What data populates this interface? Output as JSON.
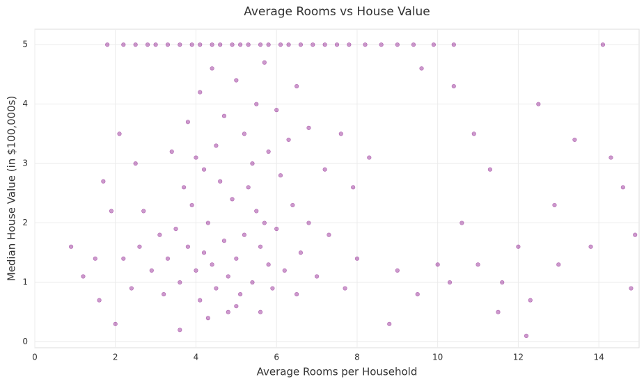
{
  "chart_data": {
    "type": "scatter",
    "title": "Average Rooms vs House Value",
    "xlabel": "Average Rooms per Household",
    "ylabel": "Median House Value (in $100,000s)",
    "color": "#800080",
    "xlim": [
      0,
      15
    ],
    "ylim": [
      -0.1,
      5.26
    ],
    "xticks": [
      0,
      2,
      4,
      6,
      8,
      10,
      12,
      14
    ],
    "yticks": [
      0,
      1,
      2,
      3,
      4,
      5
    ],
    "grid": true,
    "x": [
      1.8,
      2.2,
      2.5,
      2.8,
      3.0,
      3.3,
      3.6,
      3.9,
      4.1,
      4.4,
      4.6,
      4.9,
      5.1,
      5.3,
      5.6,
      5.8,
      6.1,
      6.3,
      6.6,
      6.9,
      7.2,
      7.5,
      7.8,
      8.2,
      8.6,
      9.0,
      9.4,
      9.9,
      10.4,
      14.1,
      4.0,
      4.2,
      4.5,
      4.8,
      5.0,
      5.2,
      5.4,
      5.6,
      4.3,
      4.7,
      5.1,
      5.5,
      5.8,
      6.0,
      3.8,
      3.6,
      4.1,
      4.9,
      5.3,
      5.7,
      6.2,
      6.4,
      3.5,
      3.9,
      4.4,
      4.6,
      5.0,
      5.9,
      6.1,
      4.2,
      3.3,
      3.1,
      2.9,
      2.7,
      6.6,
      6.8,
      7.0,
      4.8,
      5.4,
      4.0,
      3.7,
      4.5,
      5.2,
      5.8,
      6.3,
      3.4,
      2.6,
      2.4,
      2.2,
      7.3,
      4.3,
      5.6,
      6.5,
      3.2,
      4.7,
      5.5,
      6.0,
      4.1,
      3.8,
      5.0,
      6.5,
      4.4,
      5.7,
      6.8,
      7.2,
      7.6,
      7.9,
      8.3,
      8.0,
      7.7,
      2.1,
      2.5,
      1.7,
      1.9,
      1.5,
      1.2,
      0.9,
      1.6,
      2.0,
      3.6,
      9.0,
      9.5,
      10.0,
      10.3,
      10.6,
      11.0,
      11.3,
      11.6,
      12.0,
      12.3,
      12.5,
      12.9,
      13.4,
      13.8,
      14.3,
      14.6,
      14.8,
      14.9,
      11.5,
      9.6,
      10.4,
      10.9,
      8.8,
      12.2,
      13.0
    ],
    "y": [
      5,
      5,
      5,
      5,
      5,
      5,
      5,
      5,
      5,
      5,
      5,
      5,
      5,
      5,
      5,
      5,
      5,
      5,
      5,
      5,
      5,
      5,
      5,
      5,
      5,
      5,
      5,
      5,
      5,
      5,
      1.2,
      1.5,
      0.9,
      1.1,
      1.4,
      1.8,
      1.0,
      1.6,
      2.0,
      1.7,
      0.8,
      2.2,
      1.3,
      1.9,
      1.6,
      1.0,
      0.7,
      2.4,
      2.6,
      2.0,
      1.2,
      2.3,
      1.9,
      2.3,
      1.3,
      2.7,
      0.6,
      0.9,
      2.8,
      2.9,
      1.4,
      1.8,
      1.2,
      2.2,
      1.5,
      2.0,
      1.1,
      0.5,
      3.0,
      3.1,
      2.6,
      3.3,
      3.5,
      3.2,
      3.4,
      3.2,
      1.6,
      0.9,
      1.4,
      1.8,
      0.4,
      0.5,
      0.8,
      0.8,
      3.8,
      4.0,
      3.9,
      4.2,
      3.7,
      4.4,
      4.3,
      4.6,
      4.7,
      3.6,
      2.9,
      3.5,
      2.6,
      3.1,
      1.4,
      0.9,
      3.5,
      3.0,
      2.7,
      2.2,
      1.4,
      1.1,
      1.6,
      0.7,
      0.3,
      0.2,
      1.2,
      0.8,
      1.3,
      1.0,
      2.0,
      1.3,
      2.9,
      1.0,
      1.6,
      0.7,
      4.0,
      2.3,
      3.4,
      1.6,
      3.1,
      2.6,
      0.9,
      1.8,
      0.5,
      4.6,
      4.3,
      3.5,
      0.3,
      0.1,
      1.3
    ]
  }
}
